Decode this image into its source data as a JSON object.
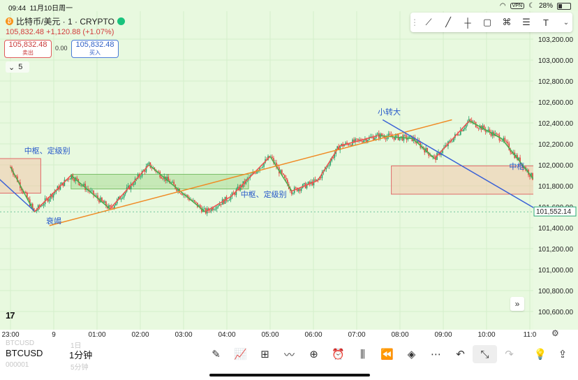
{
  "status_bar": {
    "time": "09:44",
    "date": "11月10日周一",
    "vpn": "VPN",
    "battery": "28%"
  },
  "header": {
    "symbol_title": "比特币/美元 · 1 · CRYPTO",
    "coin_icon": "bitcoin-icon",
    "last_price": "105,832.48",
    "change": "+1,120.88 (+1.07%)",
    "sell": {
      "price": "105,832.48",
      "label": "卖出"
    },
    "buy": {
      "price": "105,832.48",
      "label": "买入"
    },
    "spread": "0.00",
    "interval_count": "5"
  },
  "colors": {
    "bg": "#e8f9df",
    "up": "#26a269",
    "down": "#e0403a",
    "annot": "#2456c9"
  },
  "drawing_toolbar": {
    "tools": [
      "trend-channel-icon",
      "trend-line-icon",
      "vertical-line-icon",
      "rectangle-icon",
      "pattern-icon",
      "fib-icon",
      "text-tool-icon"
    ],
    "text_tool_label": "T"
  },
  "chart_data": {
    "type": "candlestick",
    "symbol": "BTCUSD",
    "y_ticks": [
      "103,200.00",
      "103,000.00",
      "102,800.00",
      "102,600.00",
      "102,400.00",
      "102,200.00",
      "102,000.00",
      "101,800.00",
      "101,600.00",
      "101,400.00",
      "101,200.00",
      "101,000.00",
      "100,800.00",
      "100,600.00"
    ],
    "x_ticks": [
      "23:00",
      "9",
      "01:00",
      "02:00",
      "03:00",
      "04:00",
      "05:00",
      "06:00",
      "07:00",
      "08:00",
      "09:00",
      "10:00",
      "11:0"
    ],
    "ylim": [
      100550,
      103300
    ],
    "current_price_label": "101,552.14",
    "current_price": 101552,
    "stroke_points": [
      [
        0,
        101980
      ],
      [
        0.55,
        101550
      ],
      [
        1.4,
        101900
      ],
      [
        2.3,
        101580
      ],
      [
        3.2,
        102000
      ],
      [
        4.5,
        101550
      ],
      [
        5.1,
        101700
      ],
      [
        6.0,
        102080
      ],
      [
        6.5,
        101750
      ],
      [
        7.1,
        101850
      ],
      [
        7.6,
        102180
      ],
      [
        8.5,
        102280
      ],
      [
        9.3,
        102250
      ],
      [
        9.8,
        102060
      ],
      [
        10.6,
        102420
      ],
      [
        11.35,
        102250
      ],
      [
        12.5,
        101650
      ]
    ],
    "series": [
      {
        "color": "orange",
        "points": [
          [
            0.9,
            101420
          ],
          [
            10.2,
            102430
          ]
        ]
      },
      {
        "color": "blue",
        "points": [
          [
            -0.3,
            101880
          ],
          [
            0.55,
            101560
          ]
        ]
      },
      {
        "color": "blue",
        "points": [
          [
            8.6,
            102430
          ],
          [
            12.3,
            101540
          ]
        ]
      }
    ],
    "zones": [
      {
        "x": [
          -0.3,
          0.7
        ],
        "y": [
          101730,
          102060
        ],
        "color": "red"
      },
      {
        "x": [
          1.4,
          5.5
        ],
        "y": [
          101770,
          101910
        ],
        "color": "green"
      },
      {
        "x": [
          8.8,
          12.1
        ],
        "y": [
          101720,
          101990
        ],
        "color": "red"
      }
    ],
    "annotations": [
      {
        "text": "中枢、定级别",
        "x": 0.85,
        "y": 102110
      },
      {
        "text": "衰竭",
        "x": 1.0,
        "y": 101440
      },
      {
        "text": "中枢、定级别",
        "x": 5.85,
        "y": 101695
      },
      {
        "text": "小转大",
        "x": 8.75,
        "y": 102480
      },
      {
        "text": "中枢",
        "x": 11.7,
        "y": 101960
      }
    ]
  },
  "chart_controls": {
    "logo": "17",
    "scroll_icon": "double-chevron-right-icon",
    "settings_icon": "gear-icon"
  },
  "bottom_bar": {
    "symbol": "BTCUSD",
    "timeframe": "1分钟",
    "ghost_symbol": "BTCUSD",
    "ghost_tf": "1日",
    "ghost_code": "000001",
    "ghost_tf2": "5分钟",
    "tools": [
      "pen-icon",
      "indicators-icon",
      "grid-layout-icon",
      "compare-icon",
      "add-icon",
      "alarm-icon",
      "candles-icon",
      "replay-icon",
      "layers-icon",
      "more-icon",
      "undo-icon",
      "collapse-icon",
      "redo-icon"
    ],
    "right": [
      "idea-icon",
      "share-icon"
    ]
  }
}
